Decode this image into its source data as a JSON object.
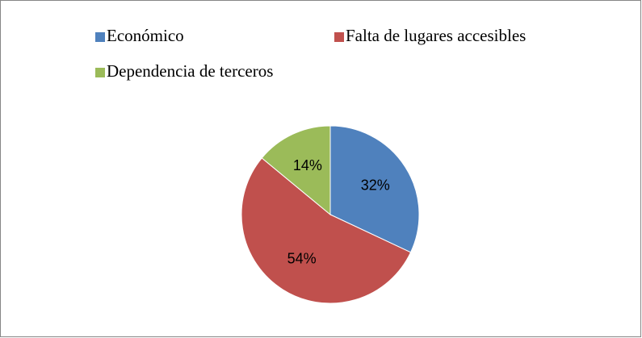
{
  "chart_data": {
    "type": "pie",
    "categories": [
      "Económico",
      "Falta de lugares accesibles",
      "Dependencia de terceros"
    ],
    "values": [
      32,
      54,
      14
    ],
    "value_labels": [
      "32%",
      "54%",
      "14%"
    ],
    "colors": [
      "#4f81bd",
      "#c0504d",
      "#9bbb59"
    ],
    "legend": "top"
  }
}
